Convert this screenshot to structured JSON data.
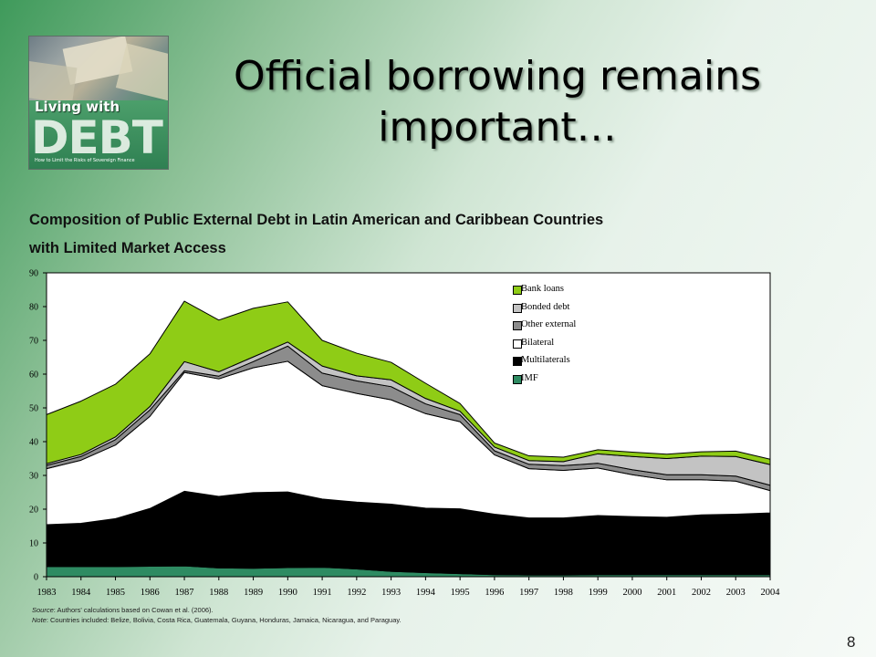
{
  "slide": {
    "title_line1": "Official borrowing remains",
    "title_line2": "important…",
    "page_number": "8"
  },
  "logo": {
    "top_text": "Living with",
    "big_text": "DEBT",
    "sub_text": "How to Limit the Risks of Sovereign Finance"
  },
  "notes": {
    "source_label": "Source",
    "source_text": ": Authors' calculations based on Cowan et al. (2006).",
    "note_label": "Note",
    "note_text": ": Countries included: Belize, Bolivia, Costa Rica, Guatemala, Guyana, Honduras, Jamaica, Nicaragua, and Paraguay."
  },
  "chart_data": {
    "type": "area",
    "stacked": true,
    "title_line1": "Composition of Public External Debt in Latin American and Caribbean Countries",
    "title_line2": "with Limited Market Access",
    "xlabel": "",
    "ylabel": "",
    "ylim": [
      0,
      90
    ],
    "yticks": [
      0,
      10,
      20,
      30,
      40,
      50,
      60,
      70,
      80,
      90
    ],
    "grid": false,
    "legend_position": "top-right",
    "x": [
      "1983",
      "1984",
      "1985",
      "1986",
      "1987",
      "1988",
      "1989",
      "1990",
      "1991",
      "1992",
      "1993",
      "1994",
      "1995",
      "1996",
      "1997",
      "1998",
      "1999",
      "2000",
      "2001",
      "2002",
      "2003",
      "2004"
    ],
    "series": [
      {
        "name": "IMF",
        "color": "#2e8b62",
        "values": [
          3,
          3,
          3,
          3.1,
          3.2,
          2.6,
          2.5,
          2.7,
          2.8,
          2.3,
          1.6,
          1.2,
          0.9,
          0.6,
          0.5,
          0.5,
          0.6,
          0.6,
          0.6,
          0.6,
          0.6,
          0.6
        ]
      },
      {
        "name": "Multilaterals",
        "color": "#000000",
        "values": [
          12.4,
          12.8,
          14.2,
          17.1,
          22.1,
          21.2,
          22.4,
          22.4,
          20.2,
          19.8,
          19.9,
          19.1,
          19.2,
          17.9,
          16.9,
          16.9,
          17.5,
          17.2,
          17,
          17.7,
          17.9,
          18.3
        ]
      },
      {
        "name": "Bilateral",
        "color": "#ffffff",
        "values": [
          16.6,
          18.7,
          21.8,
          27.3,
          35.2,
          34.8,
          37,
          38.7,
          33.6,
          32.2,
          30.9,
          28,
          25.8,
          17.6,
          14.6,
          14.1,
          14.1,
          12.4,
          11.1,
          10.4,
          9.8,
          6.6
        ]
      },
      {
        "name": "Other external",
        "color": "#8c8c8c",
        "values": [
          1,
          1.1,
          1.6,
          1.9,
          0.5,
          0.8,
          1.8,
          4.5,
          3.7,
          3.7,
          3.9,
          2.9,
          2.1,
          1.2,
          1.3,
          1.4,
          1.4,
          1.5,
          1.5,
          1.5,
          1.5,
          1.6
        ]
      },
      {
        "name": "Bonded debt",
        "color": "#c3c3c3",
        "values": [
          0.5,
          0.6,
          0.8,
          1,
          2.7,
          1.3,
          1.4,
          1.2,
          2.1,
          1.5,
          2,
          1.6,
          1,
          1.1,
          1.1,
          1.2,
          2.8,
          3.9,
          4.8,
          5.5,
          5.8,
          6.1
        ]
      },
      {
        "name": "Bank loans",
        "color": "#8fcc16",
        "values": [
          14.5,
          15.8,
          15.6,
          15.6,
          17.9,
          15.3,
          14.4,
          11.9,
          7.6,
          6.7,
          5.2,
          4.5,
          2.3,
          1.2,
          1.4,
          1.3,
          1.2,
          1.3,
          1.3,
          1.3,
          1.6,
          1.6
        ]
      }
    ]
  }
}
